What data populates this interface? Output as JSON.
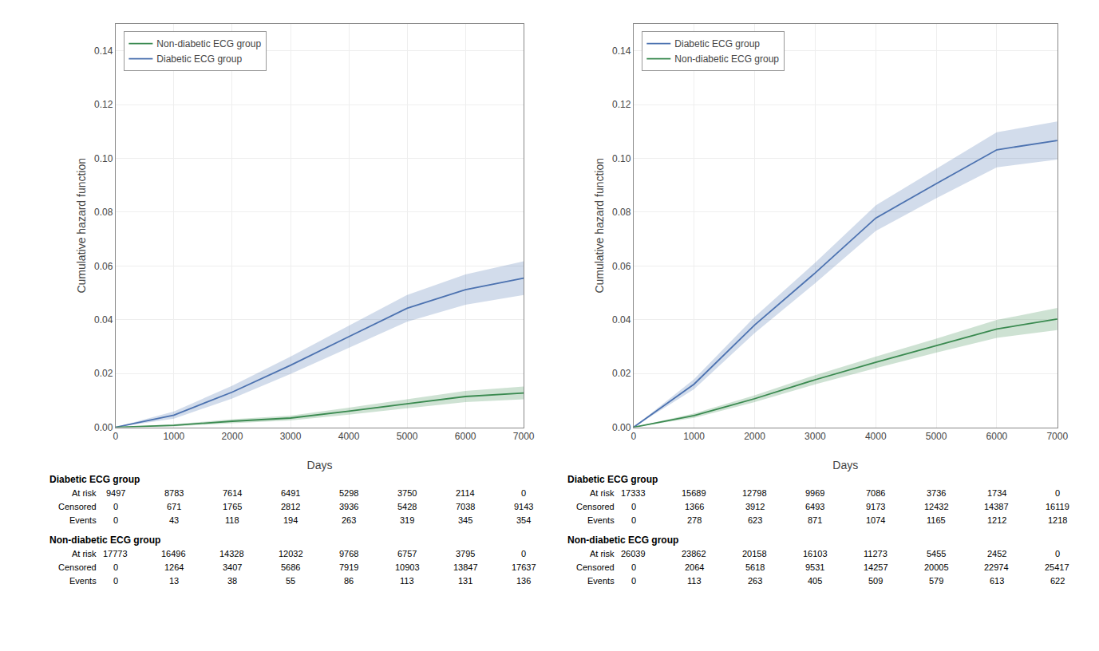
{
  "chart_data": [
    {
      "type": "line",
      "xlabel": "Days",
      "ylabel": "Cumulative hazard function",
      "x": [
        0,
        1000,
        2000,
        3000,
        4000,
        5000,
        6000,
        7000
      ],
      "xlim": [
        0,
        7000
      ],
      "xticks": [
        0,
        1000,
        2000,
        3000,
        4000,
        5000,
        6000,
        7000
      ],
      "ylim": [
        0,
        0.15
      ],
      "yticks": [
        {
          "value": 0,
          "label": "0.00"
        },
        {
          "value": 0.02,
          "label": "0.02"
        },
        {
          "value": 0.04,
          "label": "0.04"
        },
        {
          "value": 0.06,
          "label": "0.06"
        },
        {
          "value": 0.08,
          "label": "0.08"
        },
        {
          "value": 0.1,
          "label": "0.10"
        },
        {
          "value": 0.12,
          "label": "0.12"
        },
        {
          "value": 0.14,
          "label": "0.14"
        }
      ],
      "grid": true,
      "legend": "upper left",
      "series": [
        {
          "name": "Diabetic ECG group",
          "color": "#4c72b0",
          "values": [
            0,
            0.00452775,
            0.01306697,
            0.02304858,
            0.03367869,
            0.04424871,
            0.05118205,
            0.05543938
          ],
          "ci_lower": [
            0,
            0.00317441,
            0.01070762,
            0.01979241,
            0.02956847,
            0.03929308,
            0.04555524,
            0.04916264
          ],
          "ci_upper": [
            0,
            0.00588108,
            0.01542632,
            0.02630475,
            0.03778891,
            0.04920434,
            0.05680886,
            0.06171612
          ]
        },
        {
          "name": "Non-diabetic ECG group",
          "color": "#3a8a50",
          "values": [
            0,
            0.00073145,
            0.00224697,
            0.00343345,
            0.00600992,
            0.00877404,
            0.01143795,
            0.01275547
          ],
          "ci_lower": [
            0,
            0.00033383,
            0.0015321,
            0.00252287,
            0.00472471,
            0.00711909,
            0.00937557,
            0.01039177
          ],
          "ci_upper": [
            0,
            0.00112906,
            0.00296183,
            0.00434403,
            0.00729513,
            0.01042899,
            0.01350033,
            0.01511917
          ]
        }
      ],
      "risk_table": [
        {
          "name": "Diabetic ECG group",
          "rows": [
            {
              "label": "At risk",
              "values": [
                9497,
                8783,
                7614,
                6491,
                5298,
                3750,
                2114,
                0
              ]
            },
            {
              "label": "Censored",
              "values": [
                0,
                671,
                1765,
                2812,
                3936,
                5428,
                7038,
                9143
              ]
            },
            {
              "label": "Events",
              "values": [
                0,
                43,
                118,
                194,
                263,
                319,
                345,
                354
              ]
            }
          ]
        },
        {
          "name": "Non-diabetic ECG group",
          "rows": [
            {
              "label": "At risk",
              "values": [
                17773,
                16496,
                14328,
                12032,
                9768,
                6757,
                3795,
                0
              ]
            },
            {
              "label": "Censored",
              "values": [
                0,
                1264,
                3407,
                5686,
                7919,
                10903,
                13847,
                17637
              ]
            },
            {
              "label": "Events",
              "values": [
                0,
                13,
                38,
                55,
                86,
                113,
                131,
                136
              ]
            }
          ]
        }
      ]
    },
    {
      "type": "line",
      "xlabel": "Days",
      "ylabel": "Cumulative hazard function",
      "x": [
        0,
        1000,
        2000,
        3000,
        4000,
        5000,
        6000,
        7000
      ],
      "xlim": [
        0,
        7000
      ],
      "xticks": [
        0,
        1000,
        2000,
        3000,
        4000,
        5000,
        6000,
        7000
      ],
      "ylim": [
        0,
        0.15
      ],
      "yticks": [
        {
          "value": 0,
          "label": "0.00"
        },
        {
          "value": 0.02,
          "label": "0.02"
        },
        {
          "value": 0.04,
          "label": "0.04"
        },
        {
          "value": 0.06,
          "label": "0.06"
        },
        {
          "value": 0.08,
          "label": "0.08"
        },
        {
          "value": 0.1,
          "label": "0.10"
        },
        {
          "value": 0.12,
          "label": "0.12"
        },
        {
          "value": 0.14,
          "label": "0.14"
        }
      ],
      "grid": true,
      "legend": "upper left",
      "series": [
        {
          "name": "Diabetic ECG group",
          "color": "#4c72b0",
          "values": [
            0,
            0.01603877,
            0.0380287,
            0.05740673,
            0.07776986,
            0.09061208,
            0.10319238,
            0.10665259
          ],
          "ci_lower": [
            0,
            0.01415337,
            0.03503886,
            0.05356538,
            0.07301561,
            0.08517469,
            0.09667309,
            0.09956972
          ],
          "ci_upper": [
            0,
            0.01792417,
            0.04101854,
            0.06124808,
            0.08252411,
            0.09604947,
            0.10971167,
            0.11373546
          ]
        },
        {
          "name": "Non-diabetic ECG group",
          "color": "#3a8a50",
          "values": [
            0,
            0.00433965,
            0.01062579,
            0.01767014,
            0.02412856,
            0.03033809,
            0.0365709,
            0.04024137
          ],
          "ci_lower": [
            0,
            0.0035395,
            0.00934039,
            0.01593961,
            0.0219989,
            0.02775902,
            0.03324811,
            0.03614362
          ],
          "ci_upper": [
            0,
            0.0051398,
            0.01191119,
            0.01940067,
            0.02625822,
            0.03291716,
            0.03989369,
            0.04433912
          ]
        }
      ],
      "risk_table": [
        {
          "name": "Diabetic ECG group",
          "rows": [
            {
              "label": "At risk",
              "values": [
                17333,
                15689,
                12798,
                9969,
                7086,
                3736,
                1734,
                0
              ]
            },
            {
              "label": "Censored",
              "values": [
                0,
                1366,
                3912,
                6493,
                9173,
                12432,
                14387,
                16119
              ]
            },
            {
              "label": "Events",
              "values": [
                0,
                278,
                623,
                871,
                1074,
                1165,
                1212,
                1218
              ]
            }
          ]
        },
        {
          "name": "Non-diabetic ECG group",
          "rows": [
            {
              "label": "At risk",
              "values": [
                26039,
                23862,
                20158,
                16103,
                11273,
                5455,
                2452,
                0
              ]
            },
            {
              "label": "Censored",
              "values": [
                0,
                2064,
                5618,
                9531,
                14257,
                20005,
                22974,
                25417
              ]
            },
            {
              "label": "Events",
              "values": [
                0,
                113,
                263,
                405,
                509,
                579,
                613,
                622
              ]
            }
          ]
        }
      ]
    }
  ]
}
